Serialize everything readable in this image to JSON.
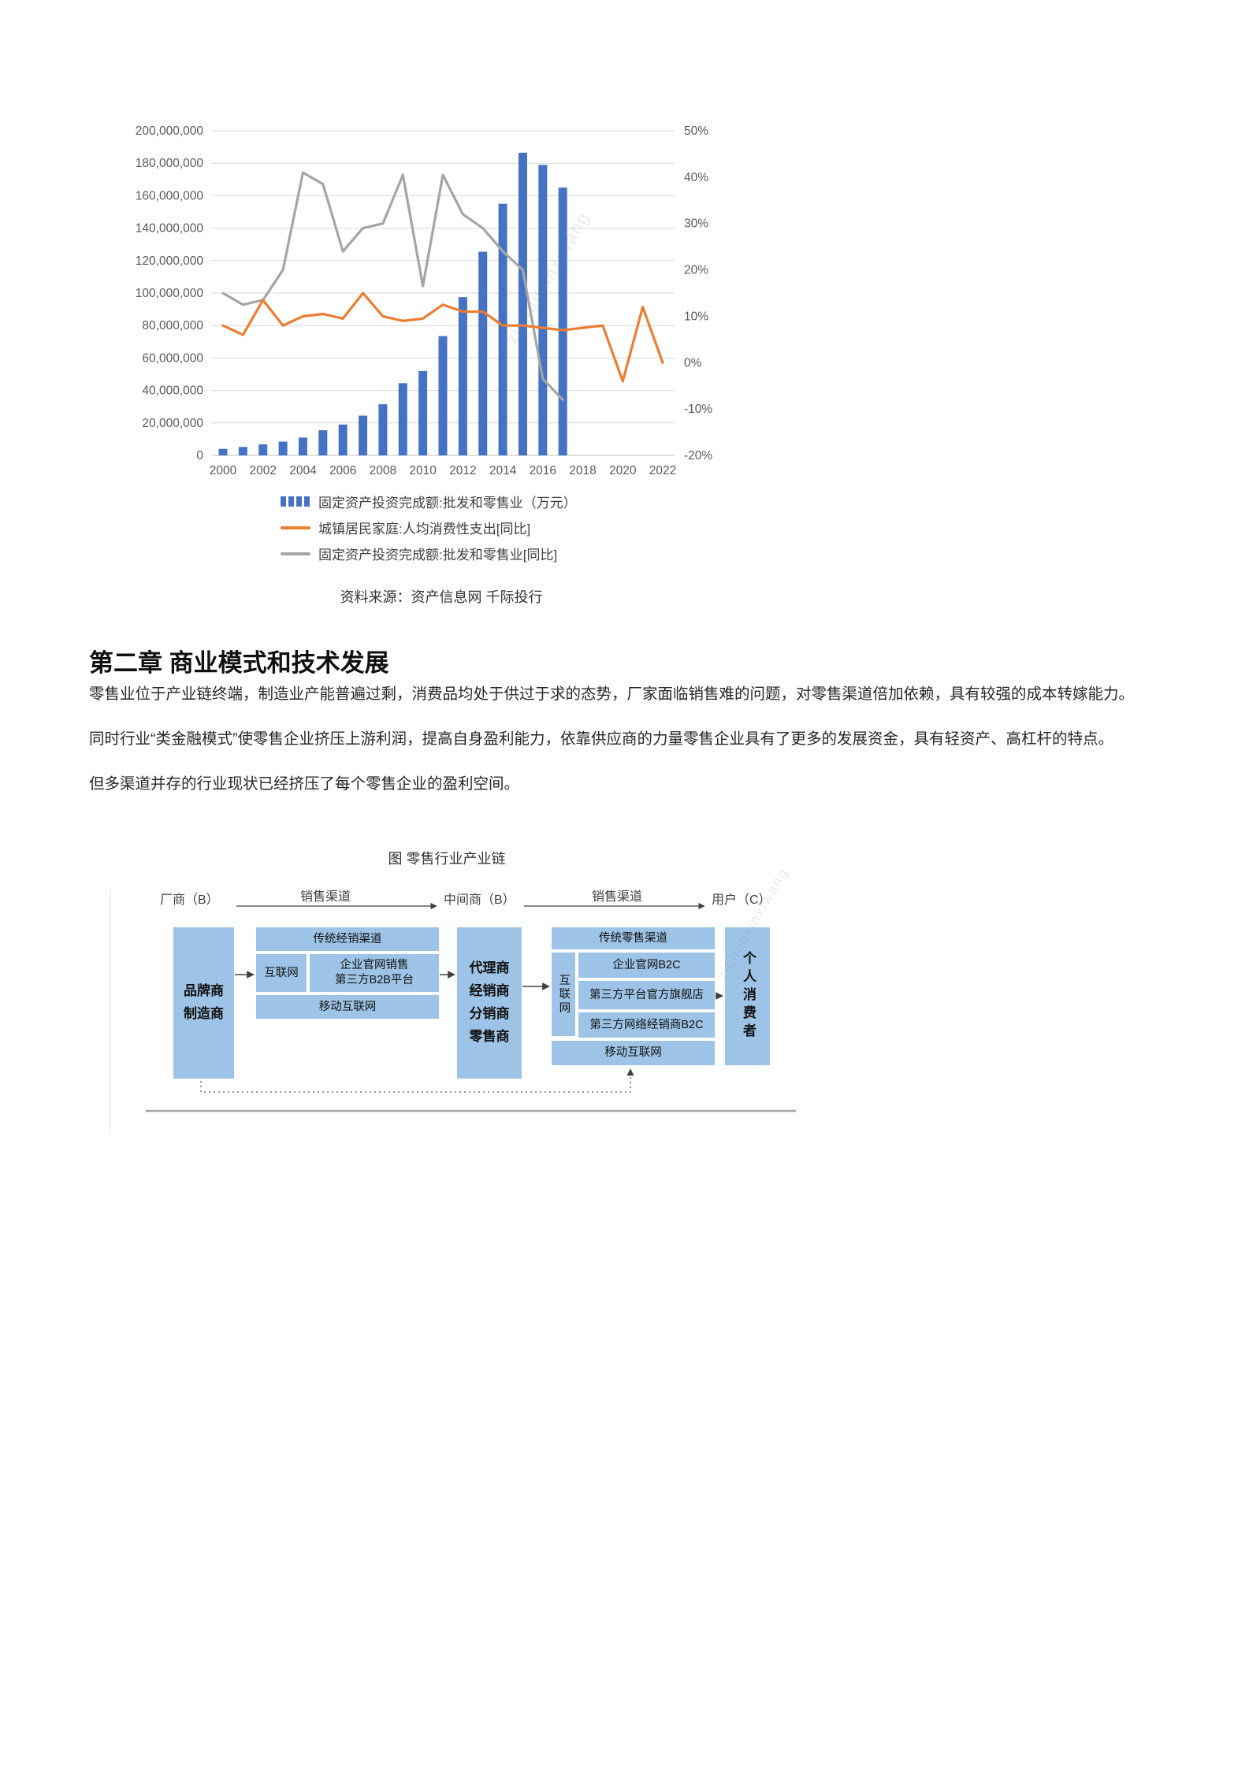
{
  "chart_data": {
    "type": "combo",
    "x": [
      2000,
      2001,
      2002,
      2003,
      2004,
      2005,
      2006,
      2007,
      2008,
      2009,
      2010,
      2011,
      2012,
      2013,
      2014,
      2015,
      2016,
      2017,
      2018,
      2019,
      2020,
      2021,
      2022
    ],
    "x_tick_labels": [
      "2000",
      "2002",
      "2004",
      "2006",
      "2008",
      "2010",
      "2012",
      "2014",
      "2016",
      "2018",
      "2020",
      "2022"
    ],
    "left_axis": {
      "min": 0,
      "max": 200000000,
      "step": 20000000,
      "ticks": [
        0,
        20000000,
        40000000,
        60000000,
        80000000,
        100000000,
        120000000,
        140000000,
        160000000,
        180000000,
        200000000
      ],
      "tick_labels": [
        "0",
        "20,000,000",
        "40,000,000",
        "60,000,000",
        "80,000,000",
        "100,000,000",
        "120,000,000",
        "140,000,000",
        "160,000,000",
        "180,000,000",
        "200,000,000"
      ]
    },
    "right_axis": {
      "min": -20,
      "max": 50,
      "step": 10,
      "ticks": [
        -20,
        -10,
        0,
        10,
        20,
        30,
        40,
        50
      ],
      "tick_labels": [
        "-20%",
        "-10%",
        "0%",
        "10%",
        "20%",
        "30%",
        "40%",
        "50%"
      ]
    },
    "grid": true,
    "legend_position": "bottom",
    "series": [
      {
        "name": "固定资产投资完成额:批发和零售业（万元）",
        "type": "bar",
        "axis": "left",
        "color": "#4472C4",
        "values": [
          4000000,
          5200000,
          6800000,
          8500000,
          11000000,
          15500000,
          19000000,
          24500000,
          31500000,
          44500000,
          52000000,
          73500000,
          97500000,
          125500000,
          155000000,
          186500000,
          179000000,
          165000000,
          null,
          null,
          null,
          null,
          null
        ]
      },
      {
        "name": "城镇居民家庭:人均消费性支出[同比]",
        "type": "line",
        "axis": "right",
        "color": "#ED7D31",
        "values": [
          8,
          6,
          13.5,
          8,
          10,
          10.5,
          9.5,
          15,
          10,
          9,
          9.5,
          12.5,
          11,
          11,
          8,
          8,
          7.5,
          7,
          7.5,
          8,
          -4,
          12,
          0
        ]
      },
      {
        "name": "固定资产投资完成额:批发和零售业[同比]",
        "type": "line",
        "axis": "right",
        "color": "#A5A5A5",
        "values": [
          15,
          12.5,
          13.5,
          20,
          41,
          38.5,
          24,
          29,
          30,
          40.5,
          16.5,
          40.5,
          32,
          29,
          24,
          20,
          -3.5,
          -8,
          null,
          null,
          null,
          null,
          null
        ]
      }
    ]
  },
  "source_line": "资料来源：资产信息网 千际投行",
  "section": {
    "heading": "第二章 商业模式和技术发展",
    "paragraphs": {
      "p1": "零售业位于产业链终端，制造业产能普遍过剩，消费品均处于供过于求的态势，厂家面临销售难的问题，对零售渠道倍加依赖，具有较强的成本转嫁能力。",
      "p2": "同时行业“类金融模式”使零售企业挤压上游利润，提高自身盈利能力，依靠供应商的力量零售企业具有了更多的发展资金，具有轻资产、高杠杆的特点。",
      "p3": "但多渠道并存的行业现状已经挤压了每个零售企业的盈利空间。"
    },
    "figure_caption": "图 零售行业产业链"
  },
  "diagram": {
    "col_labels": {
      "producer": "厂商（B）",
      "channel1": "销售渠道",
      "middleman": "中间商（B）",
      "channel2": "销售渠道",
      "user": "用户（C）"
    },
    "brand_box": "品牌商\n制造商",
    "left_group": {
      "traditional": "传统经销渠道",
      "internet": "互联网",
      "b2b": "企业官网销售\n第三方B2B平台",
      "mobile": "移动互联网"
    },
    "agents_box": "代理商\n经销商\n分销商\n零售商",
    "right_group": {
      "traditional": "传统零售渠道",
      "internet": "互联网",
      "b2c": "企业官网B2C",
      "flagship": "第三方平台官方旗舰店",
      "distributor": "第三方网络经销商B2C",
      "mobile": "移动互联网"
    },
    "consumer_box": "个人消费者"
  },
  "watermark": "zichanxinxiwang"
}
